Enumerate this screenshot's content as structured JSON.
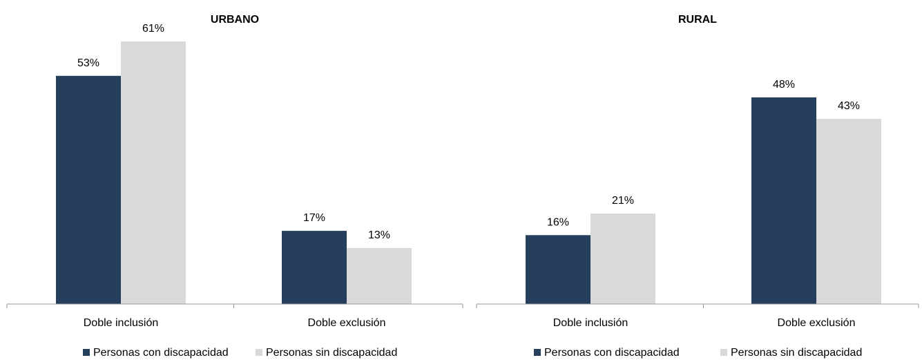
{
  "chart_data": [
    {
      "type": "bar",
      "title": "URBANO",
      "categories": [
        "Doble inclusión",
        "Doble exclusión"
      ],
      "series": [
        {
          "name": "Personas con discapacidad",
          "color": "#263f5f",
          "values": [
            53,
            17
          ]
        },
        {
          "name": "Personas sin discapacidad",
          "color": "#d9d9d9",
          "values": [
            61,
            13
          ]
        }
      ],
      "value_labels": [
        [
          "53%",
          "17%"
        ],
        [
          "61%",
          "13%"
        ]
      ],
      "ylim": [
        0,
        65
      ],
      "grid": false,
      "legend_position": "bottom"
    },
    {
      "type": "bar",
      "title": "RURAL",
      "categories": [
        "Doble inclusión",
        "Doble exclusión"
      ],
      "series": [
        {
          "name": "Personas con discapacidad",
          "color": "#263f5f",
          "values": [
            16,
            48
          ]
        },
        {
          "name": "Personas sin discapacidad",
          "color": "#d9d9d9",
          "values": [
            21,
            43
          ]
        }
      ],
      "value_labels": [
        [
          "16%",
          "48%"
        ],
        [
          "21%",
          "43%"
        ]
      ],
      "ylim": [
        0,
        65
      ],
      "grid": false,
      "legend_position": "bottom"
    }
  ]
}
